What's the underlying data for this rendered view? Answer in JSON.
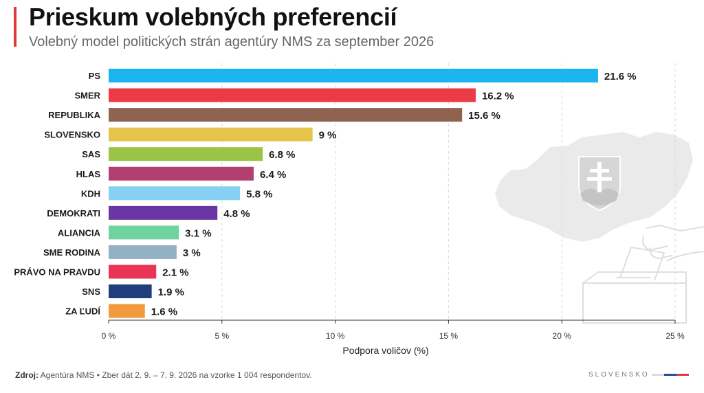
{
  "header": {
    "title": "Prieskum volebných preferencií",
    "subtitle": "Volebný model politických strán agentúry NMS za september 2026"
  },
  "footer": {
    "source_label": "Zdroj:",
    "source_text": "Agentúra NMS • Zber dát 2. 9. – 7. 9. 2026 na vzorke 1 004 respondentov.",
    "brand": "SLOVENSKO",
    "flag_colors": [
      "#d9dde3",
      "#1d4fa3",
      "#e03a3e"
    ]
  },
  "chart_data": {
    "type": "bar",
    "orientation": "horizontal",
    "title": "",
    "xlabel": "Podpora voličov (%)",
    "ylabel": "",
    "xlim": [
      0,
      25
    ],
    "xticks": [
      0,
      5,
      10,
      15,
      20,
      25
    ],
    "xtick_labels": [
      "0 %",
      "5 %",
      "10 %",
      "15 %",
      "20 %",
      "25 %"
    ],
    "grid": "vertical dashed",
    "categories": [
      "PS",
      "SMER",
      "REPUBLIKA",
      "SLOVENSKO",
      "SAS",
      "HLAS",
      "KDH",
      "DEMOKRATI",
      "ALIANCIA",
      "SME RODINA",
      "PRÁVO NA PRAVDU",
      "SNS",
      "ZA ĽUDÍ"
    ],
    "values": [
      21.6,
      16.2,
      15.6,
      9,
      6.8,
      6.4,
      5.8,
      4.8,
      3.1,
      3,
      2.1,
      1.9,
      1.6
    ],
    "value_labels": [
      "21.6 %",
      "16.2 %",
      "15.6 %",
      "9 %",
      "6.8 %",
      "6.4 %",
      "5.8 %",
      "4.8 %",
      "3.1 %",
      "3 %",
      "2.1 %",
      "1.9 %",
      "1.6 %"
    ],
    "colors": [
      "#1ab4ee",
      "#ec3b46",
      "#8e6450",
      "#e6c44a",
      "#9ac443",
      "#b13f6f",
      "#86d1f3",
      "#6a35a4",
      "#6fd3a0",
      "#93b1c4",
      "#ea3456",
      "#1f3f7c",
      "#f39a3c"
    ]
  }
}
